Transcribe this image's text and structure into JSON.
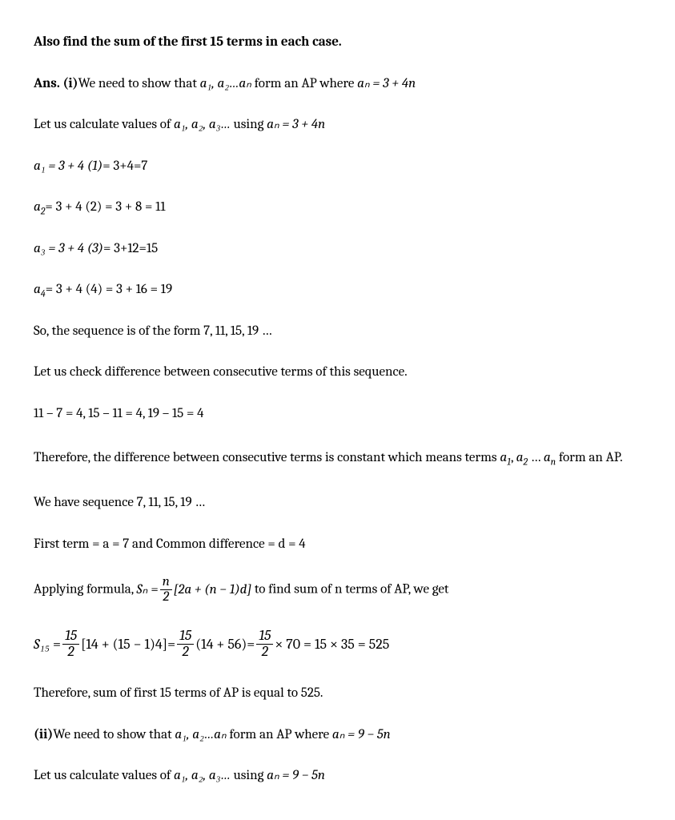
{
  "title": "Also find the sum of the first 15 terms in each case.",
  "p1": {
    "ans": "Ans. (i)",
    "t1": "We need to show that ",
    "seq": "a₁, a₂…aₙ",
    "t2": " form an AP where ",
    "f1": "aₙ  =  3  +  4n"
  },
  "p2": {
    "t1": "Let us calculate values of ",
    "seq": "a₁, a₂, a₃…",
    "t2": " using ",
    "f1": "aₙ  =  3  +  4n"
  },
  "calc1": "a₁ =  3  +  4 (1) = 3+4=7",
  "calc1_pre": "a₁ =  3  +  4 (1)",
  "calc1_post": "= 3+4=7",
  "calc2_a": "a",
  "calc2_sub": "2",
  "calc2_rest": "= 3 + 4 (2) = 3 + 8 = 11",
  "calc3_pre": "a₃ =  3  +  4 (3)",
  "calc3_post": "= 3+12=15",
  "calc4_a": "a",
  "calc4_sub": "4",
  "calc4_rest": "= 3 + 4 (4) = 3 + 16 = 19",
  "p_seq": "So, the sequence is of the form 7, 11, 15, 19 …",
  "p_check": "Let us check difference between consecutive terms of this sequence.",
  "p_diff": "11 – 7 = 4, 15 – 11 = 4, 19 – 15 = 4",
  "p_const1": "Therefore, the difference between consecutive terms is constant which means terms ",
  "p_const_a1": "a",
  "p_const_s1": "1",
  "p_const_mid": ", ",
  "p_const_a2": "a",
  "p_const_s2": "2",
  "p_const_post": " … ",
  "p_const_an": "a",
  "p_const_sn": "n",
  "p_const_end": " form an AP.",
  "p_have": "We have sequence 7, 11, 15, 19 …",
  "p_first": "First term = a = 7 and Common difference = d = 4",
  "p_apply1": "Applying formula, ",
  "formula": {
    "lhs": "Sₙ",
    "frac_num": "n",
    "frac_den": "2",
    "bracket": "[2a + (n − 1)d]"
  },
  "p_apply2": " to find sum of n terms of AP, we get",
  "s15": {
    "lhs": "S₁₅",
    "f1n": "15",
    "f1d": "2",
    "br1": "[14 + (15 − 1)4]",
    "f2n": "15",
    "f2d": "2",
    "p2": "(14 + 56)",
    "f3n": "15",
    "f3d": "2",
    "tail": "× 70 = 15 × 35 = 525"
  },
  "p_therefore": "Therefore, sum of first 15 terms of AP is equal to 525.",
  "p_ii": {
    "lead": "(ii)",
    "t1": "We need to show that ",
    "seq": "a₁, a₂…aₙ",
    "t2": " form an AP where ",
    "f1": "aₙ  =  9  −  5n"
  },
  "p_ii2": {
    "t1": "Let us calculate values of ",
    "seq": "a₁, a₂, a₃…",
    "t2": " using ",
    "f1": "aₙ  =  9  −  5n"
  }
}
